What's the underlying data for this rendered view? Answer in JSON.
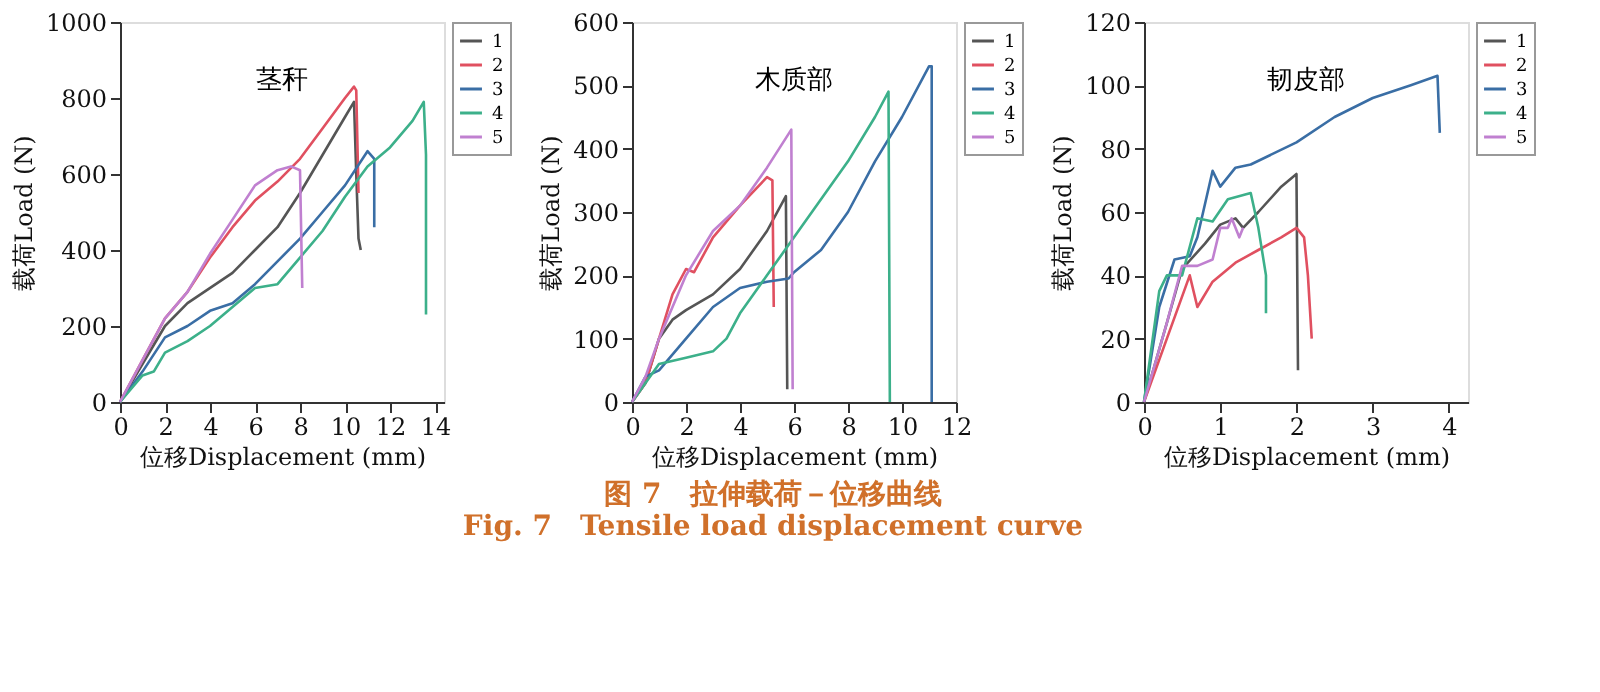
{
  "chart_data": [
    {
      "type": "line",
      "title": "茎秆",
      "xlabel": "位移Displacement (mm)",
      "ylabel": "载荷Load (N)",
      "xlim": [
        0,
        14.4
      ],
      "xticks": [
        0,
        2,
        4,
        6,
        8,
        10,
        12,
        14
      ],
      "ylim": [
        0,
        1000
      ],
      "yticks": [
        0,
        200,
        400,
        600,
        800,
        1000
      ],
      "grid": false,
      "legend": "top right",
      "marker": "none",
      "line_style": "solid",
      "annotations": [
        "图 7　拉伸载荷－位移曲线",
        "Fig. 7　Tensile load displacement curve"
      ],
      "series": [
        {
          "name": "1",
          "color": "#555555",
          "x": [
            0,
            1,
            2,
            3,
            5,
            6,
            7,
            8,
            9,
            10,
            10.4,
            10.5,
            10.6,
            10.7
          ],
          "values": [
            0,
            100,
            200,
            260,
            340,
            400,
            460,
            550,
            650,
            750,
            790,
            600,
            430,
            400
          ]
        },
        {
          "name": "2",
          "color": "#e05060",
          "x": [
            0,
            1,
            2,
            3,
            4,
            5,
            6,
            7,
            8,
            9,
            10,
            10.4,
            10.5,
            10.6
          ],
          "values": [
            0,
            110,
            220,
            290,
            380,
            460,
            530,
            580,
            640,
            720,
            800,
            830,
            820,
            550
          ]
        },
        {
          "name": "3",
          "color": "#3a6ea5",
          "x": [
            0,
            1,
            2,
            3,
            4,
            5,
            6,
            7,
            8,
            9,
            10,
            11,
            11.3,
            11.3
          ],
          "values": [
            0,
            80,
            170,
            200,
            240,
            260,
            310,
            370,
            430,
            500,
            570,
            660,
            640,
            460
          ]
        },
        {
          "name": "4",
          "color": "#3cb08a",
          "x": [
            0,
            1,
            1.5,
            2,
            3,
            4,
            5,
            6,
            7,
            8,
            9,
            10,
            11,
            12,
            13,
            13.5,
            13.6,
            13.6
          ],
          "values": [
            0,
            70,
            80,
            130,
            160,
            200,
            250,
            300,
            310,
            380,
            450,
            540,
            620,
            670,
            740,
            790,
            650,
            230
          ]
        },
        {
          "name": "5",
          "color": "#c080d0",
          "x": [
            0,
            1,
            2,
            3,
            4,
            5,
            6,
            7,
            7.6,
            8,
            8.1
          ],
          "values": [
            0,
            110,
            220,
            290,
            390,
            480,
            570,
            610,
            620,
            610,
            300
          ]
        }
      ]
    },
    {
      "type": "line",
      "title": "木质部",
      "xlabel": "位移Displacement (mm)",
      "ylabel": "载荷Load (N)",
      "xlim": [
        0,
        12
      ],
      "xticks": [
        0,
        2,
        4,
        6,
        8,
        10,
        12
      ],
      "ylim": [
        0,
        600
      ],
      "yticks": [
        0,
        100,
        200,
        300,
        400,
        500,
        600
      ],
      "grid": false,
      "legend": "top right",
      "marker": "none",
      "line_style": "solid",
      "series": [
        {
          "name": "1",
          "color": "#555555",
          "x": [
            0,
            0.5,
            1,
            1.5,
            2,
            3,
            4,
            5,
            5.7,
            5.75
          ],
          "values": [
            0,
            30,
            100,
            130,
            145,
            170,
            210,
            270,
            325,
            20
          ]
        },
        {
          "name": "2",
          "color": "#e05060",
          "x": [
            0,
            0.5,
            1,
            1.5,
            2,
            2.3,
            3,
            4,
            5,
            5.2,
            5.25
          ],
          "values": [
            0,
            30,
            100,
            170,
            210,
            205,
            260,
            310,
            355,
            350,
            150
          ]
        },
        {
          "name": "3",
          "color": "#3a6ea5",
          "x": [
            0,
            0.5,
            1,
            2,
            3,
            4,
            5,
            5.8,
            6,
            7,
            8,
            9,
            10,
            11,
            11.1,
            11.1
          ],
          "values": [
            0,
            40,
            50,
            100,
            150,
            180,
            190,
            195,
            205,
            240,
            300,
            380,
            450,
            530,
            530,
            0
          ]
        },
        {
          "name": "4",
          "color": "#3cb08a",
          "x": [
            0,
            0.5,
            1,
            2,
            3,
            3.5,
            4,
            5,
            6,
            7,
            8,
            9,
            9.5,
            9.55
          ],
          "values": [
            0,
            30,
            60,
            70,
            80,
            100,
            140,
            200,
            260,
            320,
            380,
            450,
            490,
            0
          ]
        },
        {
          "name": "5",
          "color": "#c080d0",
          "x": [
            0,
            0.5,
            1,
            2,
            3,
            4,
            5,
            5.9,
            5.95
          ],
          "values": [
            0,
            40,
            100,
            200,
            270,
            310,
            370,
            430,
            20
          ]
        }
      ]
    },
    {
      "type": "line",
      "title": "韧皮部",
      "xlabel": "位移Displacement (mm)",
      "ylabel": "载荷Load (N)",
      "xlim": [
        0,
        4.25
      ],
      "xticks": [
        0,
        1,
        2,
        3,
        4
      ],
      "ylim": [
        0,
        120
      ],
      "yticks": [
        0,
        20,
        40,
        60,
        80,
        100,
        120
      ],
      "grid": false,
      "legend": "top right",
      "marker": "none",
      "line_style": "solid",
      "series": [
        {
          "name": "1",
          "color": "#555555",
          "x": [
            0,
            0.3,
            0.5,
            0.8,
            1,
            1.2,
            1.3,
            1.5,
            1.8,
            2,
            2.02
          ],
          "values": [
            0,
            25,
            42,
            50,
            56,
            58,
            55,
            60,
            68,
            72,
            10
          ]
        },
        {
          "name": "2",
          "color": "#e05060",
          "x": [
            0,
            0.3,
            0.6,
            0.7,
            0.9,
            1.2,
            1.5,
            1.8,
            2,
            2.1,
            2.15,
            2.2
          ],
          "values": [
            0,
            20,
            40,
            30,
            38,
            44,
            48,
            52,
            55,
            52,
            40,
            20
          ]
        },
        {
          "name": "3",
          "color": "#3a6ea5",
          "x": [
            0,
            0.2,
            0.4,
            0.6,
            0.7,
            0.9,
            1,
            1.2,
            1.4,
            2,
            2.5,
            3,
            3.5,
            3.85,
            3.88
          ],
          "values": [
            0,
            30,
            45,
            46,
            52,
            73,
            68,
            74,
            75,
            82,
            90,
            96,
            100,
            103,
            85
          ]
        },
        {
          "name": "4",
          "color": "#3cb08a",
          "x": [
            0,
            0.2,
            0.3,
            0.5,
            0.7,
            0.9,
            1.1,
            1.4,
            1.5,
            1.6,
            1.6
          ],
          "values": [
            0,
            35,
            40,
            40,
            58,
            57,
            64,
            66,
            55,
            40,
            28
          ]
        },
        {
          "name": "5",
          "color": "#c080d0",
          "x": [
            0,
            0.3,
            0.5,
            0.7,
            0.9,
            1,
            1.1,
            1.15,
            1.25,
            1.3
          ],
          "values": [
            0,
            25,
            43,
            43,
            45,
            55,
            55,
            58,
            52,
            55
          ]
        }
      ]
    }
  ]
}
